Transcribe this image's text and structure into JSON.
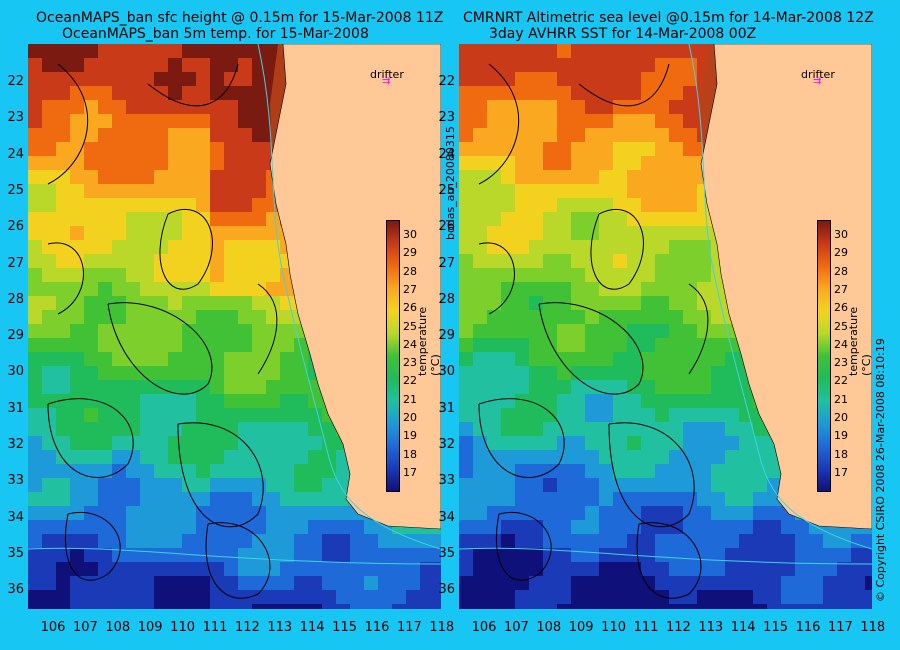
{
  "left_panel": {
    "title_line1": "OceanMAPS_ban sfc height @ 0.15m for 15-Mar-2008 11Z",
    "title_line2": "OceanMAPS_ban 5m temp. for 15-Mar-2008"
  },
  "right_panel": {
    "title_line1": "CMRNRT Altimetric sea level  @0.15m  for 14-Mar-2008 12Z",
    "title_line2": "3day AVHRR SST for 14-Mar-2008 00Z"
  },
  "side_label": "bodas_an_20080315",
  "copyright": "© Copyright CSIRO 2008    26-Mar-2008 08:10:19",
  "drifter_label": "drifter",
  "colorbar": {
    "label": "temperature (°C)",
    "ticks": [
      "30",
      "29",
      "28",
      "27",
      "26",
      "25",
      "24",
      "23",
      "22",
      "21",
      "20",
      "19",
      "18",
      "17"
    ]
  },
  "axes": {
    "lat_ticks": [
      "22",
      "23",
      "24",
      "25",
      "26",
      "27",
      "28",
      "29",
      "30",
      "31",
      "32",
      "33",
      "34",
      "35",
      "36"
    ],
    "lon_ticks": [
      "106",
      "107",
      "108",
      "109",
      "110",
      "111",
      "112",
      "113",
      "114",
      "115",
      "116",
      "117",
      "118"
    ]
  },
  "colors": {
    "background": "#17c6f2",
    "land": "#ffc896",
    "contour": "#000000",
    "isobath": "#3ed3e6",
    "drifter": "#ff00ff"
  }
}
